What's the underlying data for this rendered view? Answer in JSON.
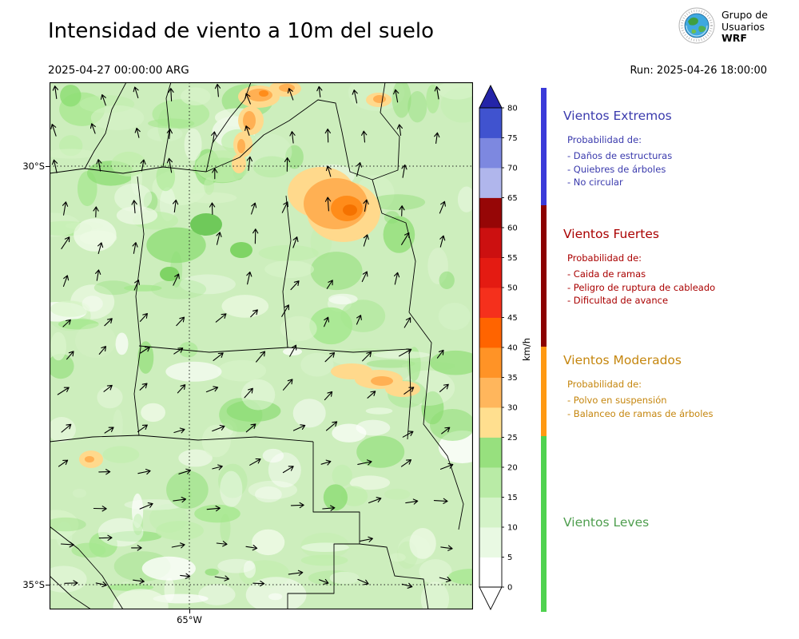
{
  "header": {
    "title": "Intensidad de viento a 10m del suelo",
    "valid_datetime": "2025-04-27 00:00:00 ARG",
    "run_label": "Run: 2025-04-26 18:00:00",
    "logo_lines": [
      "Grupo de",
      "Usuarios",
      "WRF"
    ]
  },
  "map": {
    "y_axis_ticks": [
      "30°S",
      "35°S"
    ],
    "x_axis_ticks": [
      "65°W"
    ],
    "base_color": "#cdeebd",
    "texture_palette": [
      "#ffffff",
      "#eefae6",
      "#d9f4cb",
      "#bfeeab",
      "#a5e78e",
      "#8ddd74"
    ],
    "feature_colors": {
      "yellow": "#ffd98c",
      "orange": "#ffb053",
      "deep_orange": "#ff8c1a",
      "core_orange": "#f57200"
    }
  },
  "colorbar": {
    "unit_label": "km/h",
    "ticks": [
      "0",
      "5",
      "10",
      "15",
      "20",
      "25",
      "30",
      "35",
      "40",
      "45",
      "50",
      "55",
      "60",
      "65",
      "70",
      "75",
      "80"
    ],
    "segment_colors": [
      "#ffffff",
      "#e9f9e3",
      "#d4f3c8",
      "#b9eba6",
      "#97e07e",
      "#ffdf8f",
      "#ffb65c",
      "#ff9326",
      "#ff6400",
      "#f5301c",
      "#e41b12",
      "#cc1010",
      "#960606",
      "#b0b6ec",
      "#7d88e0",
      "#4053cf"
    ],
    "over_color": "#2424a8",
    "under_color": "#ffffff"
  },
  "legend": {
    "categories": [
      {
        "name": "Vientos Extremos",
        "text_color": "#3a3aad",
        "strip_color": "#3a3ad9",
        "prob_label": "Probabilidad de:",
        "items": [
          "- Daños de estructuras",
          "- Quiebres de árboles",
          "- No circular"
        ]
      },
      {
        "name": "Vientos Fuertes",
        "text_color": "#aa0000",
        "strip_color": "#8b0000",
        "prob_label": "Probabilidad de:",
        "items": [
          "- Caida de ramas",
          "- Peligro de ruptura de cableado",
          "- Dificultad de avance"
        ]
      },
      {
        "name": "Vientos Moderados",
        "text_color": "#c5860e",
        "strip_color": "#ff9912",
        "prob_label": "Probabilidad de:",
        "items": [
          "- Polvo en suspensión",
          "- Balanceo de ramas de árboles"
        ]
      },
      {
        "name": "Vientos Leves",
        "text_color": "#4f9e4f",
        "strip_color": "#4fd24f",
        "prob_label": "",
        "items": []
      }
    ]
  }
}
